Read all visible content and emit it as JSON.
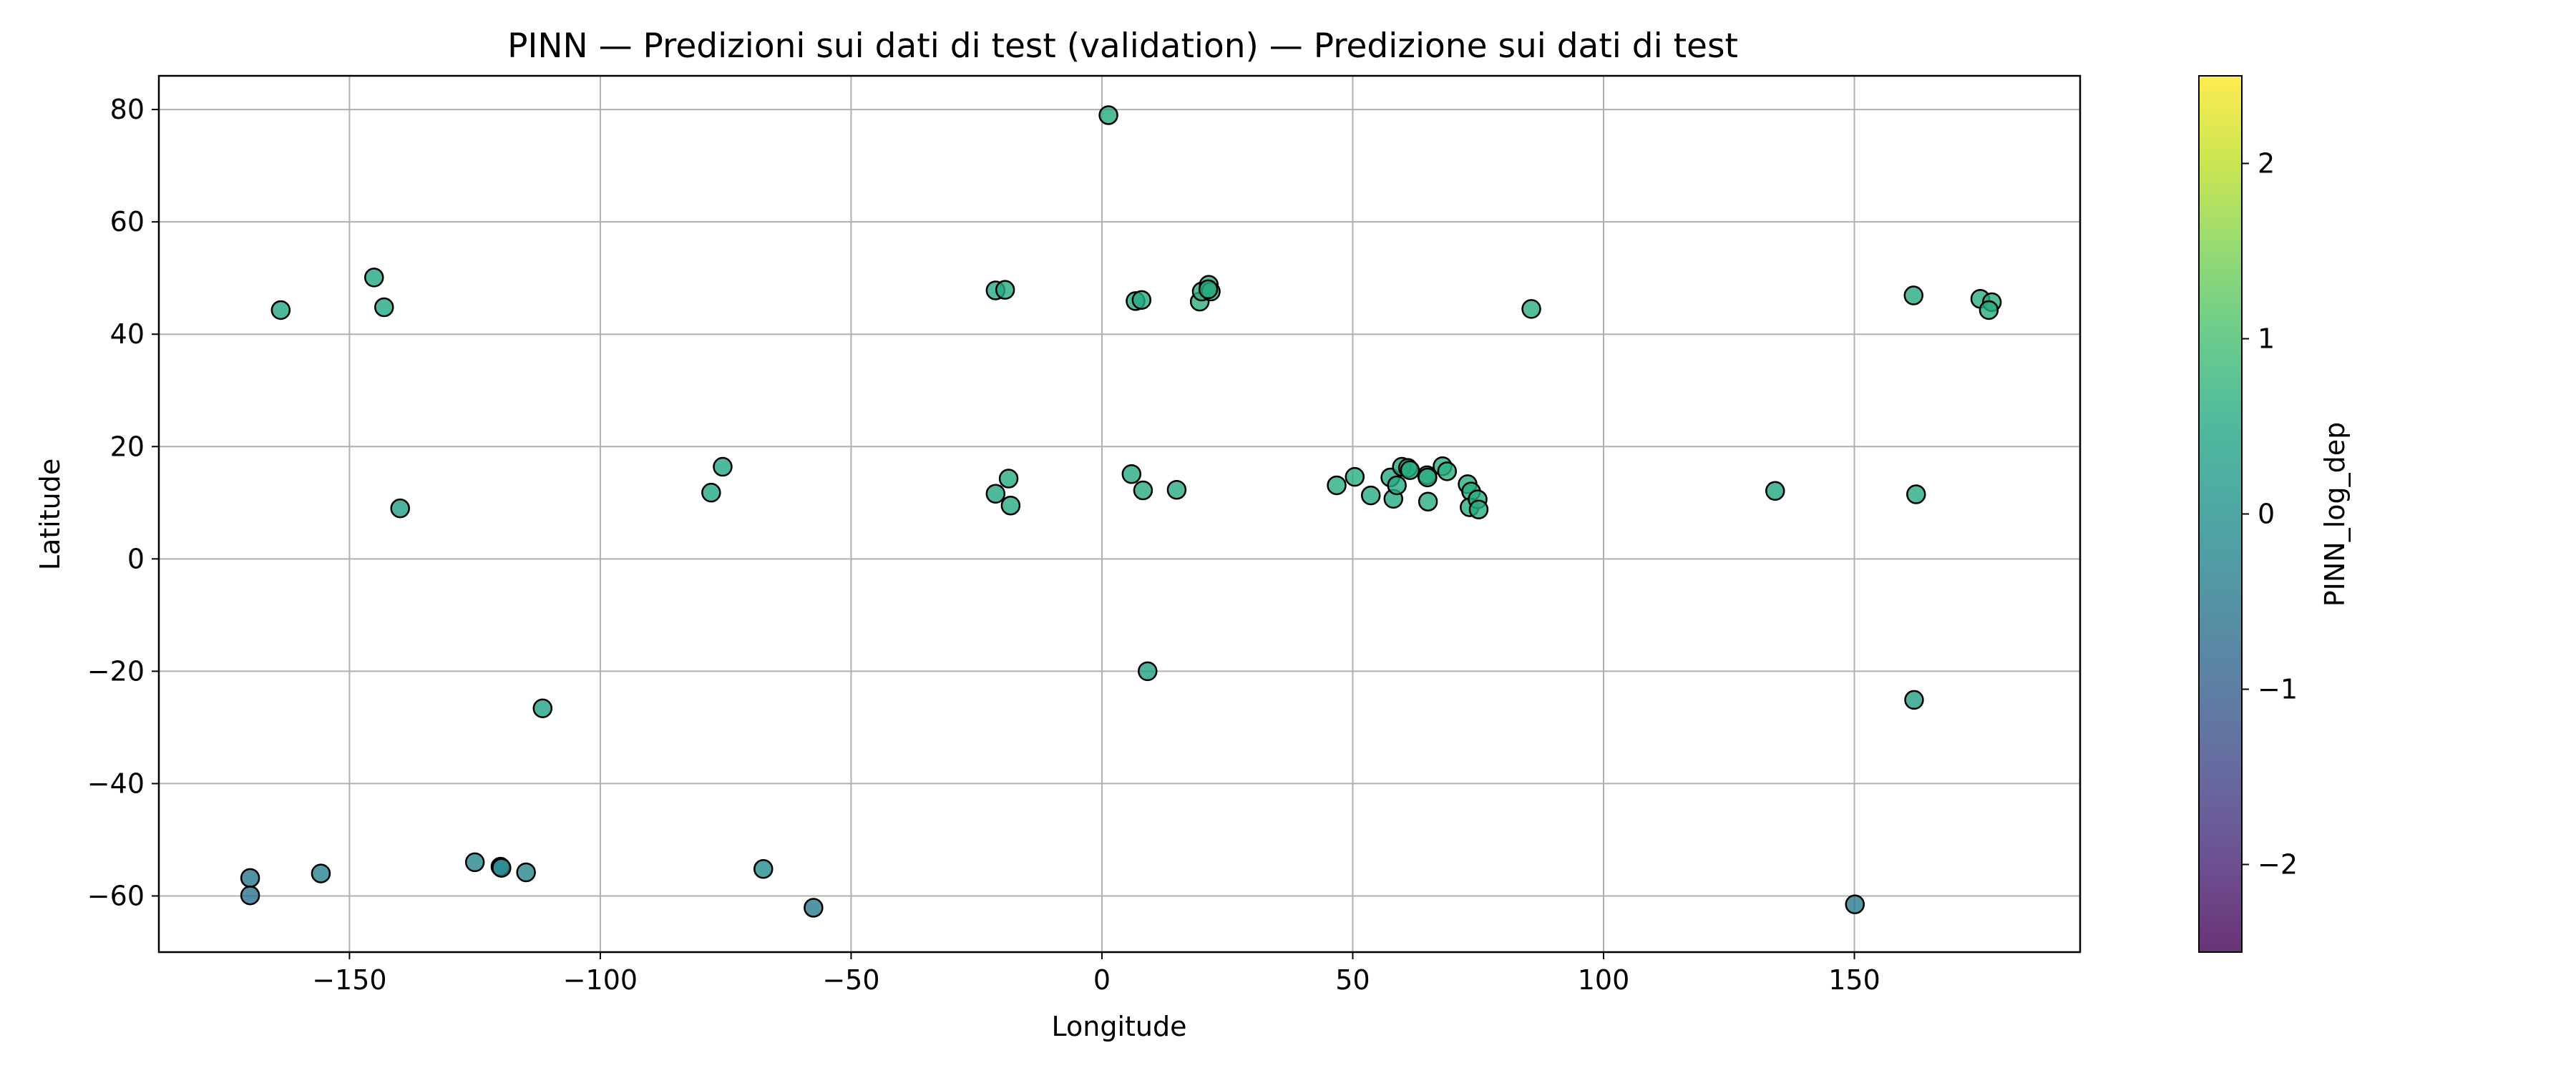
{
  "chart_data": {
    "type": "scatter",
    "title": "PINN — Predizioni sui dati di test (validation) — Predizione sui dati di test",
    "xlabel": "Longitude",
    "ylabel": "Latitude",
    "xlim": [
      -188,
      195
    ],
    "ylim": [
      -70,
      86
    ],
    "xticks": [
      -150,
      -100,
      -50,
      0,
      50,
      100,
      150
    ],
    "yticks": [
      -60,
      -40,
      -20,
      0,
      20,
      40,
      60,
      80
    ],
    "grid": true,
    "colormap": "viridis",
    "marker_edge_color": "#000000",
    "marker_alpha": 0.8,
    "colorbar": {
      "label": "PINN_log_dep",
      "min": -2.5,
      "max": 2.5,
      "ticks": [
        -2,
        -1,
        0,
        1,
        2
      ]
    },
    "points": [
      {
        "x": 1.3,
        "y": 79.0,
        "c": 0.55
      },
      {
        "x": -163.7,
        "y": 44.3,
        "c": 0.45
      },
      {
        "x": -145.1,
        "y": 50.1,
        "c": 0.5
      },
      {
        "x": -143.1,
        "y": 44.8,
        "c": 0.5
      },
      {
        "x": -139.9,
        "y": 9.0,
        "c": 0.25
      },
      {
        "x": -77.9,
        "y": 11.8,
        "c": 0.5
      },
      {
        "x": -75.6,
        "y": 16.4,
        "c": 0.5
      },
      {
        "x": -21.2,
        "y": 47.8,
        "c": 0.55
      },
      {
        "x": -19.3,
        "y": 47.9,
        "c": 0.55
      },
      {
        "x": -21.2,
        "y": 11.6,
        "c": 0.5
      },
      {
        "x": -18.6,
        "y": 14.3,
        "c": 0.55
      },
      {
        "x": -18.2,
        "y": 9.5,
        "c": 0.55
      },
      {
        "x": 5.9,
        "y": 15.1,
        "c": 0.55
      },
      {
        "x": 6.7,
        "y": 45.9,
        "c": 0.55
      },
      {
        "x": 7.9,
        "y": 46.1,
        "c": 0.55
      },
      {
        "x": 8.2,
        "y": 12.2,
        "c": 0.55
      },
      {
        "x": 9.1,
        "y": -20.0,
        "c": 0.3
      },
      {
        "x": 14.9,
        "y": 12.3,
        "c": 0.55
      },
      {
        "x": 19.5,
        "y": 45.8,
        "c": 0.65
      },
      {
        "x": 19.9,
        "y": 47.6,
        "c": 0.65
      },
      {
        "x": 21.3,
        "y": 48.8,
        "c": 0.6
      },
      {
        "x": 21.7,
        "y": 47.6,
        "c": 0.6
      },
      {
        "x": 21.2,
        "y": 48.0,
        "c": 0.6
      },
      {
        "x": 46.8,
        "y": 13.1,
        "c": 0.6
      },
      {
        "x": 50.4,
        "y": 14.6,
        "c": 0.6
      },
      {
        "x": 53.6,
        "y": 11.3,
        "c": 0.55
      },
      {
        "x": 57.5,
        "y": 14.5,
        "c": 0.55
      },
      {
        "x": 58.1,
        "y": 10.7,
        "c": 0.55
      },
      {
        "x": 58.8,
        "y": 13.1,
        "c": 0.55
      },
      {
        "x": 59.8,
        "y": 16.4,
        "c": 0.55
      },
      {
        "x": 61.0,
        "y": 16.2,
        "c": 0.55
      },
      {
        "x": 61.4,
        "y": 15.8,
        "c": 0.55
      },
      {
        "x": 64.8,
        "y": 14.9,
        "c": 0.6
      },
      {
        "x": 64.9,
        "y": 14.5,
        "c": 0.6
      },
      {
        "x": 65.0,
        "y": 10.2,
        "c": 0.6
      },
      {
        "x": 67.9,
        "y": 16.5,
        "c": 0.65
      },
      {
        "x": 68.8,
        "y": 15.6,
        "c": 0.65
      },
      {
        "x": 72.9,
        "y": 13.3,
        "c": 0.6
      },
      {
        "x": 73.6,
        "y": 12.0,
        "c": 0.6
      },
      {
        "x": 73.3,
        "y": 9.2,
        "c": 0.6
      },
      {
        "x": 74.9,
        "y": 10.6,
        "c": 0.6
      },
      {
        "x": 75.1,
        "y": 8.8,
        "c": 0.6
      },
      {
        "x": 85.6,
        "y": 44.5,
        "c": 0.6
      },
      {
        "x": 134.2,
        "y": 12.1,
        "c": 0.45
      },
      {
        "x": 161.8,
        "y": 46.9,
        "c": 0.55
      },
      {
        "x": 162.3,
        "y": 11.5,
        "c": 0.55
      },
      {
        "x": 161.9,
        "y": -25.1,
        "c": 0.3
      },
      {
        "x": 175.1,
        "y": 46.3,
        "c": 0.6
      },
      {
        "x": 177.4,
        "y": 45.7,
        "c": 0.6
      },
      {
        "x": 176.8,
        "y": 44.3,
        "c": 0.6
      },
      {
        "x": -111.5,
        "y": -26.6,
        "c": 0.35
      },
      {
        "x": -169.8,
        "y": -56.8,
        "c": -0.55
      },
      {
        "x": -169.8,
        "y": -59.9,
        "c": -0.6
      },
      {
        "x": -155.7,
        "y": -56.0,
        "c": -0.3
      },
      {
        "x": -125.0,
        "y": -54.0,
        "c": -0.2
      },
      {
        "x": -119.9,
        "y": -54.8,
        "c": -0.2
      },
      {
        "x": -119.7,
        "y": -55.0,
        "c": -0.2
      },
      {
        "x": -114.8,
        "y": -55.8,
        "c": -0.2
      },
      {
        "x": -67.5,
        "y": -55.2,
        "c": -0.1
      },
      {
        "x": -57.5,
        "y": -62.1,
        "c": -0.45
      },
      {
        "x": 150.1,
        "y": -61.5,
        "c": -0.4
      }
    ]
  }
}
